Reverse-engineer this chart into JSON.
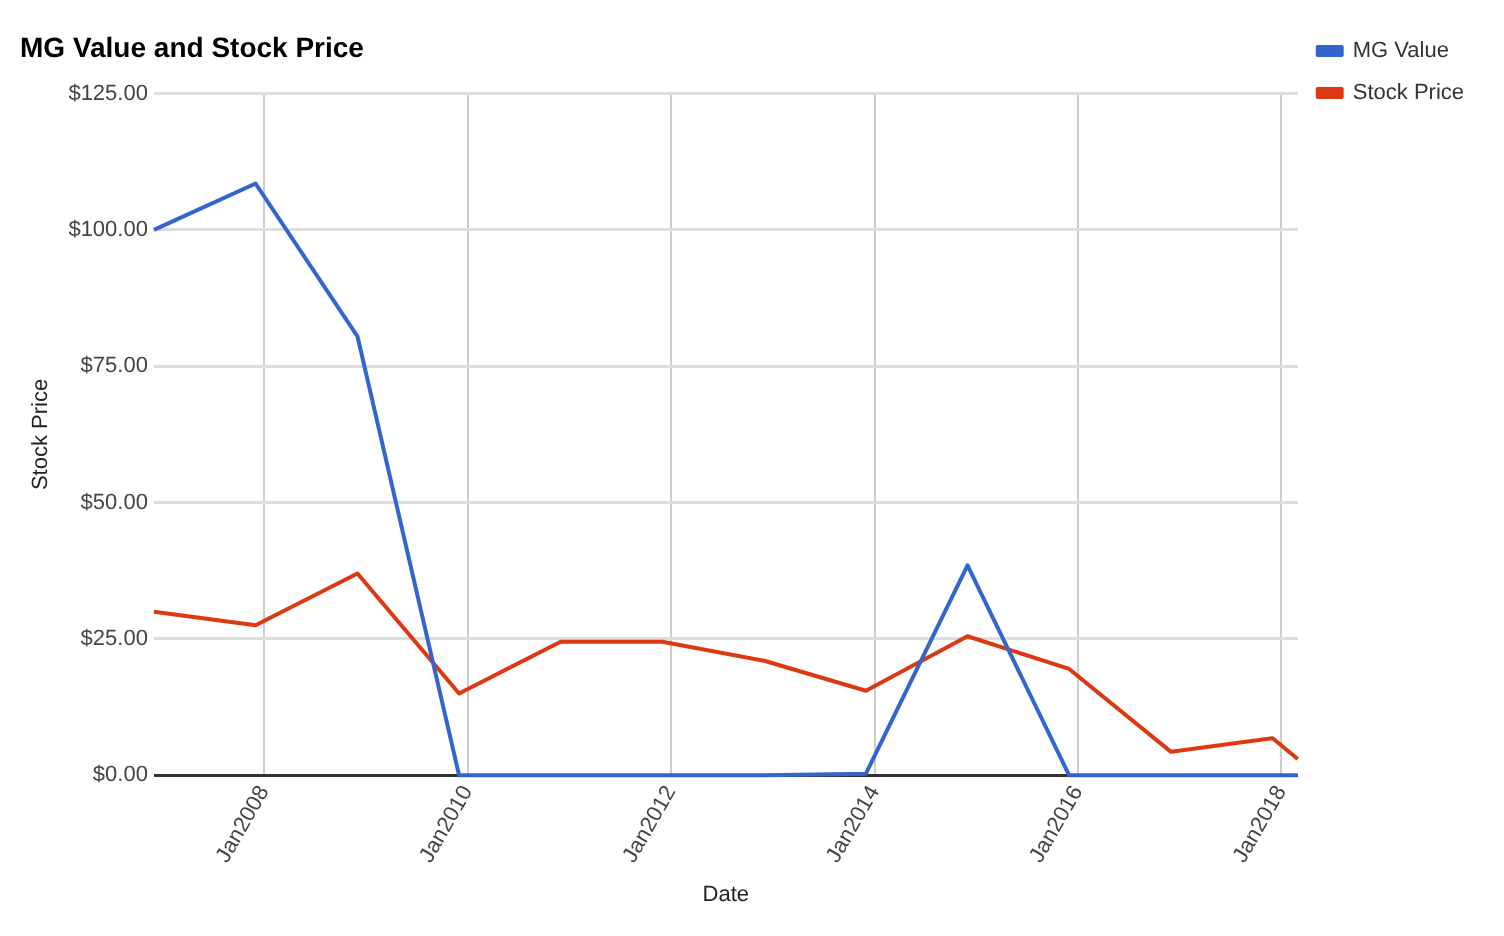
{
  "chart_data": {
    "type": "line",
    "title": "MG Value and Stock Price",
    "xlabel": "Date",
    "ylabel": "Stock Price",
    "x": [
      "2006-12",
      "2007-12",
      "2008-12",
      "2009-12",
      "2010-12",
      "2011-12",
      "2012-12",
      "2013-12",
      "2014-12",
      "2015-12",
      "2016-12",
      "2017-12",
      "2018-03"
    ],
    "series": [
      {
        "name": "MG Value",
        "color": "#3366cc",
        "values": [
          100,
          108.5,
          80.5,
          0,
          0,
          0,
          0,
          0.3,
          38.5,
          0,
          0,
          0,
          0
        ]
      },
      {
        "name": "Stock Price",
        "color": "#dc3912",
        "values": [
          30,
          27.5,
          37,
          15,
          24.5,
          24.5,
          21,
          15.5,
          25.5,
          19.5,
          4.3,
          6.8,
          3
        ]
      }
    ],
    "xlim": [
      "2006-12",
      "2018-03"
    ],
    "xticks": [
      {
        "value": "2008-01",
        "label": "Jan2008"
      },
      {
        "value": "2010-01",
        "label": "Jan2010"
      },
      {
        "value": "2012-01",
        "label": "Jan2012"
      },
      {
        "value": "2014-01",
        "label": "Jan2014"
      },
      {
        "value": "2016-01",
        "label": "Jan2016"
      },
      {
        "value": "2018-01",
        "label": "Jan2018"
      }
    ],
    "ylim": [
      0,
      125
    ],
    "yticks": [
      {
        "value": 0,
        "label": "$0.00"
      },
      {
        "value": 25,
        "label": "$25.00"
      },
      {
        "value": 50,
        "label": "$50.00"
      },
      {
        "value": 75,
        "label": "$75.00"
      },
      {
        "value": 100,
        "label": "$100.00"
      },
      {
        "value": 125,
        "label": "$125.00"
      }
    ],
    "grid": true,
    "legend": "right",
    "marker": "none",
    "line_style": "solid"
  }
}
